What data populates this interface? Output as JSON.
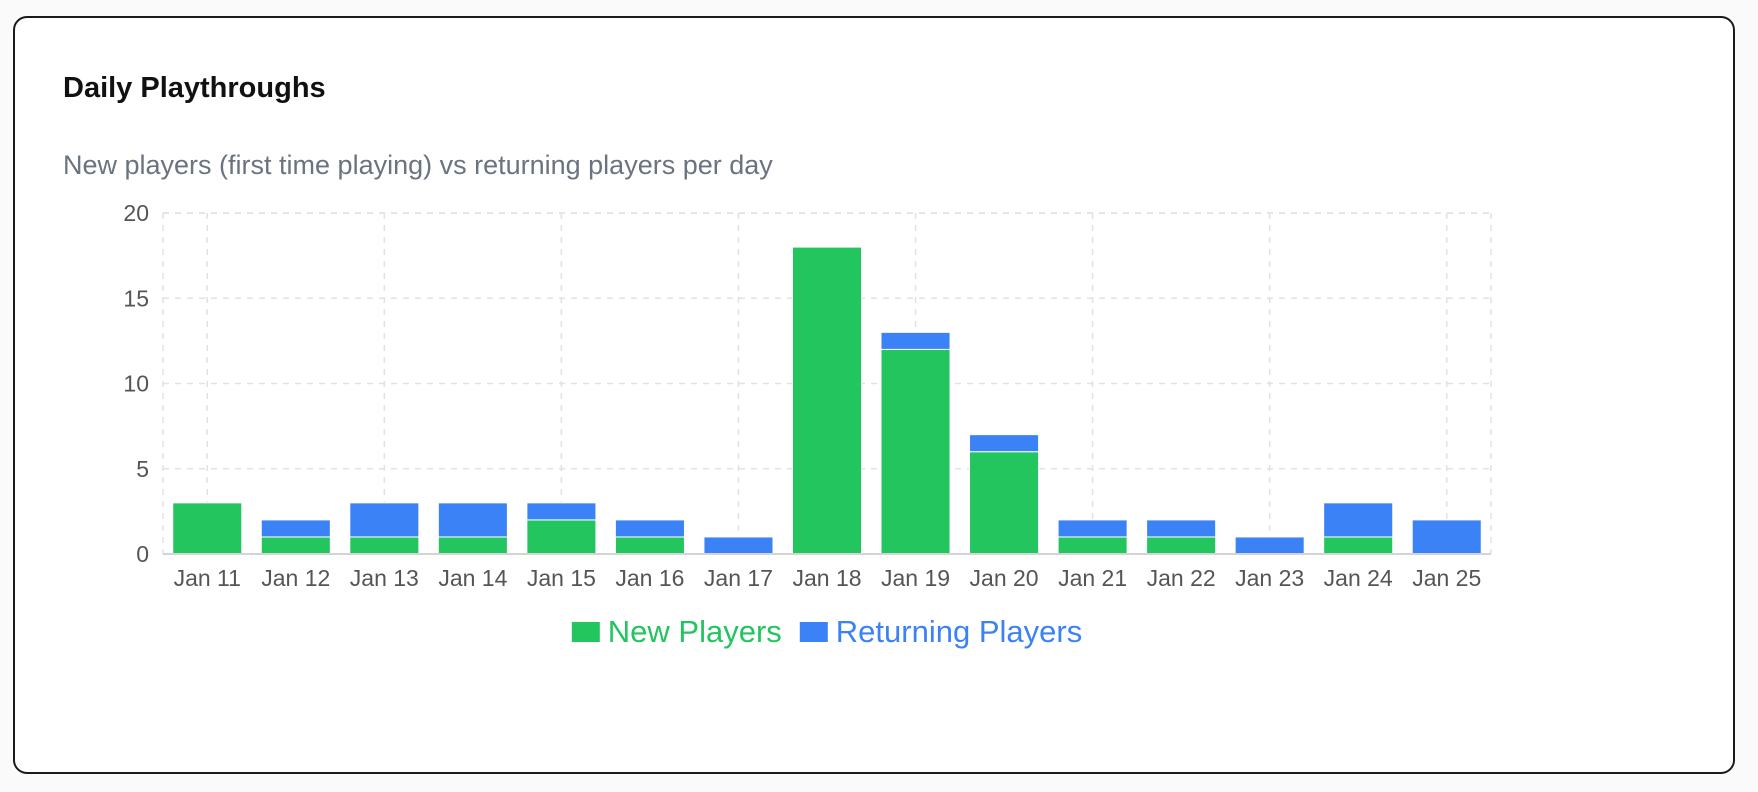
{
  "card": {
    "title": "Daily Playthroughs",
    "subtitle": "New players (first time playing) vs returning players per day"
  },
  "chart_data": {
    "type": "bar",
    "stacked": true,
    "categories": [
      "Jan 11",
      "Jan 12",
      "Jan 13",
      "Jan 14",
      "Jan 15",
      "Jan 16",
      "Jan 17",
      "Jan 18",
      "Jan 19",
      "Jan 20",
      "Jan 21",
      "Jan 22",
      "Jan 23",
      "Jan 24",
      "Jan 25"
    ],
    "series": [
      {
        "name": "New Players",
        "color": "#22c55e",
        "values": [
          3,
          1,
          1,
          1,
          2,
          1,
          0,
          18,
          12,
          6,
          1,
          1,
          0,
          1,
          0
        ]
      },
      {
        "name": "Returning Players",
        "color": "#3b82f6",
        "values": [
          0,
          1,
          2,
          2,
          1,
          1,
          1,
          0,
          1,
          1,
          1,
          1,
          1,
          2,
          2
        ]
      }
    ],
    "ylim": [
      0,
      20
    ],
    "yticks": [
      0,
      5,
      10,
      15,
      20
    ],
    "grid": true,
    "legend_position": "bottom-center"
  }
}
